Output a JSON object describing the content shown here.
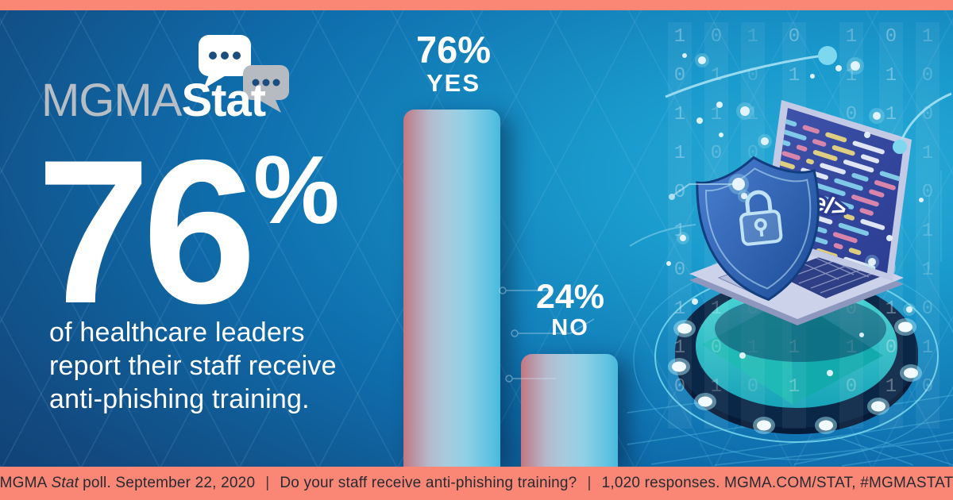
{
  "logo": {
    "mgma": "MGMA",
    "stat": "Stat"
  },
  "hero": {
    "value": "76",
    "percent_sign": "%",
    "description_lines": [
      "of healthcare leaders",
      "report their staff receive",
      "anti-phishing training."
    ]
  },
  "chart_data": {
    "type": "bar",
    "title": "Do your staff receive anti-phishing training?",
    "categories": [
      "YES",
      "NO"
    ],
    "values": [
      76,
      24
    ],
    "unit": "%",
    "ylim": [
      0,
      100
    ],
    "grid": false,
    "legend_position": "none",
    "bar_labels": [
      {
        "value": "76%",
        "answer": "YES"
      },
      {
        "value": "24%",
        "answer": "NO"
      }
    ]
  },
  "illustration": {
    "code_label": "<code/>",
    "binary_columns": [
      "1011010110",
      "0110101101",
      "1010011010",
      "0101101011",
      "1101010010",
      "0110110101",
      "1001011010"
    ]
  },
  "footer": {
    "brand": "MGMA",
    "brand_italic": "Stat",
    "poll_info": "poll. September 22, 2020",
    "divider": "|",
    "question": "Do your staff receive anti-phishing training?",
    "responses": "1,020 responses. MGMA.COM/STAT, #MGMASTAT"
  },
  "colors": {
    "salmon_accent": "#FA8775",
    "background_navy": "#0E3263",
    "background_cyan": "#29ABD7",
    "bar_gradient": [
      "#C4767E",
      "#B5B9CC",
      "#8FD0E6",
      "#49B9DC"
    ],
    "platform_teal": "#2FC5C4",
    "screen_navy": "#34479E",
    "shield_blue": "#2E63B5",
    "logo_gray": "#B7BDC4",
    "bubble_dot_navy": "#1C4D7D",
    "footer_text": "#272B31",
    "text_white": "#FFFFFF"
  }
}
